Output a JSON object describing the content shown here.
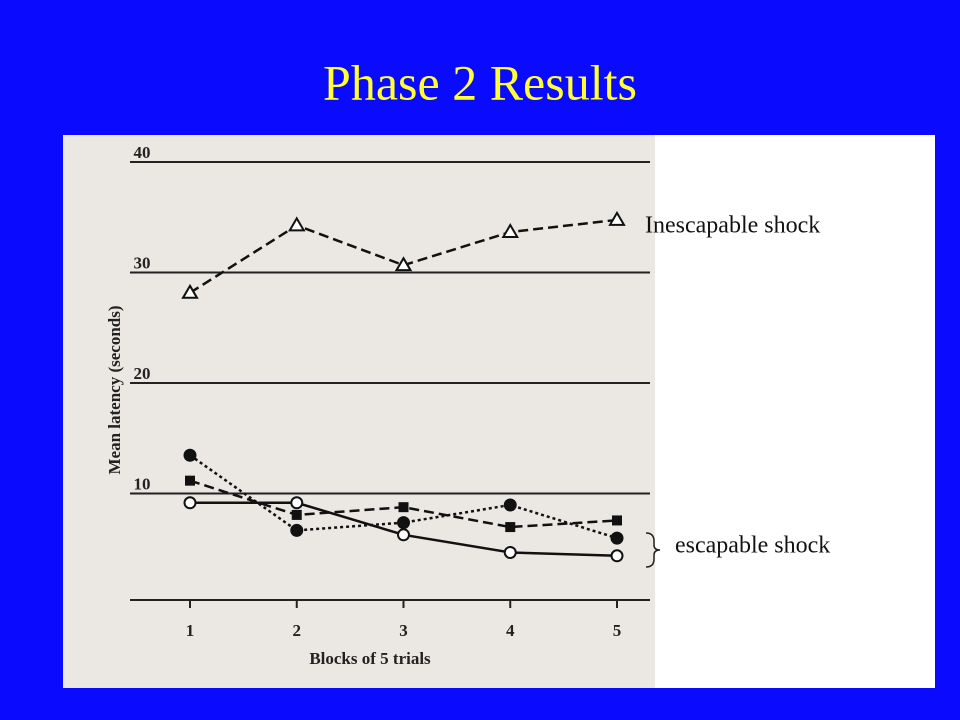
{
  "chart_data": {
    "type": "line",
    "title": "Phase 2 Results",
    "x_label": "Blocks of 5 trials",
    "y_label": "Mean latency (seconds)",
    "categories": [
      "1",
      "2",
      "3",
      "4",
      "5"
    ],
    "series": [
      {
        "name": "Inescapable shock",
        "color": "#111111",
        "marker": "triangle",
        "dash": "dashed",
        "values": [
          27.8,
          33.9,
          30.3,
          33.3,
          34.4
        ]
      },
      {
        "color": "#111111",
        "marker": "filled-circle",
        "dash": "dotted",
        "values": [
          13.1,
          6.3,
          7.0,
          8.6,
          5.6
        ]
      },
      {
        "color": "#111111",
        "marker": "square",
        "dash": "dashed",
        "values": [
          10.8,
          7.7,
          8.4,
          6.6,
          7.2
        ]
      },
      {
        "color": "#111111",
        "marker": "open-circle",
        "dash": "solid",
        "values": [
          8.8,
          8.8,
          5.9,
          4.3,
          4.0
        ]
      }
    ],
    "annotations": [
      "escapable shock"
    ],
    "ylim": [
      0,
      40
    ],
    "yticks": [
      10,
      20,
      30,
      40
    ],
    "grid": true
  }
}
